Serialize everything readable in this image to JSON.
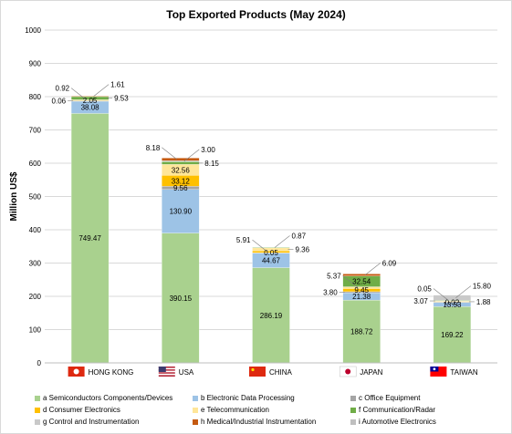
{
  "chart_data": {
    "type": "bar",
    "stacked": true,
    "title": "Top Exported Products (May 2024)",
    "ylabel": "Million US$",
    "xlabel": "",
    "ylim": [
      0,
      1000
    ],
    "yticks": [
      0,
      100,
      200,
      300,
      400,
      500,
      600,
      700,
      800,
      900,
      1000
    ],
    "grid": true,
    "legend_position": "bottom",
    "categories": [
      "HONG KONG",
      "USA",
      "CHINA",
      "JAPAN",
      "TAIWAN"
    ],
    "category_flags": [
      "hong-kong-flag-icon",
      "usa-flag-icon",
      "china-flag-icon",
      "japan-flag-icon",
      "taiwan-flag-icon"
    ],
    "series": [
      {
        "name": "a Semiconductors Components/Devices",
        "color": "#a9d18e",
        "values": [
          749.47,
          390.15,
          286.19,
          188.72,
          169.22
        ]
      },
      {
        "name": "b Electronic Data Processing",
        "color": "#9dc3e6",
        "values": [
          38.08,
          130.9,
          44.67,
          21.38,
          13.53
        ]
      },
      {
        "name": "c Office Equipment",
        "color": "#a5a5a5",
        "values": [
          0.06,
          9.56,
          0.05,
          3.8,
          0.02
        ]
      },
      {
        "name": "d Consumer Electronics",
        "color": "#ffc000",
        "values": [
          2.05,
          33.12,
          5.91,
          9.45,
          1.88
        ]
      },
      {
        "name": "e Telecommunication",
        "color": "#ffe699",
        "values": [
          0.92,
          32.56,
          9.36,
          5.37,
          3.07
        ]
      },
      {
        "name": "f Communication/Radar",
        "color": "#70ad47",
        "values": [
          9.53,
          8.15,
          0.87,
          32.54,
          0.05
        ]
      },
      {
        "name": "g Control and Instrumentation",
        "color": "#c9c9c9",
        "values": [
          0.0,
          3.0,
          0.0,
          0.0,
          15.8
        ]
      },
      {
        "name": "h Medical/Industrial Instrumentation",
        "color": "#c55a11",
        "values": [
          1.61,
          8.18,
          0.0,
          6.09,
          0.0
        ]
      },
      {
        "name": "i Automotive Electronics",
        "color": "#bfbfbf",
        "values": [
          0.0,
          0.0,
          0.0,
          0.0,
          0.0
        ]
      }
    ],
    "data_labels": [
      {
        "category": 0,
        "series": 0,
        "text": "749.47",
        "placement": "inside"
      },
      {
        "category": 0,
        "series": 1,
        "text": "38.08",
        "placement": "inside"
      },
      {
        "category": 0,
        "series": 2,
        "text": "0.06",
        "placement": "left"
      },
      {
        "category": 0,
        "series": 3,
        "text": "2.05",
        "placement": "inside"
      },
      {
        "category": 0,
        "series": 4,
        "text": "0.92",
        "placement": "upper-left"
      },
      {
        "category": 0,
        "series": 5,
        "text": "9.53",
        "placement": "right"
      },
      {
        "category": 0,
        "series": 7,
        "text": "1.61",
        "placement": "upper-right"
      },
      {
        "category": 1,
        "series": 0,
        "text": "390.15",
        "placement": "inside"
      },
      {
        "category": 1,
        "series": 1,
        "text": "130.90",
        "placement": "inside"
      },
      {
        "category": 1,
        "series": 2,
        "text": "9.56",
        "placement": "inside"
      },
      {
        "category": 1,
        "series": 3,
        "text": "33.12",
        "placement": "inside"
      },
      {
        "category": 1,
        "series": 4,
        "text": "32.56",
        "placement": "inside"
      },
      {
        "category": 1,
        "series": 5,
        "text": "8.15",
        "placement": "right"
      },
      {
        "category": 1,
        "series": 6,
        "text": "3.00",
        "placement": "upper-right"
      },
      {
        "category": 1,
        "series": 7,
        "text": "8.18",
        "placement": "upper-left"
      },
      {
        "category": 2,
        "series": 0,
        "text": "286.19",
        "placement": "inside"
      },
      {
        "category": 2,
        "series": 1,
        "text": "44.67",
        "placement": "inside"
      },
      {
        "category": 2,
        "series": 2,
        "text": "0.05",
        "placement": "inside"
      },
      {
        "category": 2,
        "series": 3,
        "text": "5.91",
        "placement": "upper-left"
      },
      {
        "category": 2,
        "series": 4,
        "text": "9.36",
        "placement": "right"
      },
      {
        "category": 2,
        "series": 5,
        "text": "0.87",
        "placement": "upper-right"
      },
      {
        "category": 3,
        "series": 0,
        "text": "188.72",
        "placement": "inside"
      },
      {
        "category": 3,
        "series": 1,
        "text": "21.38",
        "placement": "inside"
      },
      {
        "category": 3,
        "series": 2,
        "text": "3.80",
        "placement": "left"
      },
      {
        "category": 3,
        "series": 3,
        "text": "9.45",
        "placement": "inside"
      },
      {
        "category": 3,
        "series": 4,
        "text": "5.37",
        "placement": "upper-left"
      },
      {
        "category": 3,
        "series": 5,
        "text": "32.54",
        "placement": "inside"
      },
      {
        "category": 3,
        "series": 7,
        "text": "6.09",
        "placement": "upper-right"
      },
      {
        "category": 4,
        "series": 0,
        "text": "169.22",
        "placement": "inside"
      },
      {
        "category": 4,
        "series": 1,
        "text": "13.53",
        "placement": "inside"
      },
      {
        "category": 4,
        "series": 2,
        "text": "0.02",
        "placement": "inside"
      },
      {
        "category": 4,
        "series": 3,
        "text": "1.88",
        "placement": "right"
      },
      {
        "category": 4,
        "series": 4,
        "text": "3.07",
        "placement": "left"
      },
      {
        "category": 4,
        "series": 5,
        "text": "0.05",
        "placement": "upper-left"
      },
      {
        "category": 4,
        "series": 6,
        "text": "15.80",
        "placement": "upper-right"
      }
    ]
  }
}
